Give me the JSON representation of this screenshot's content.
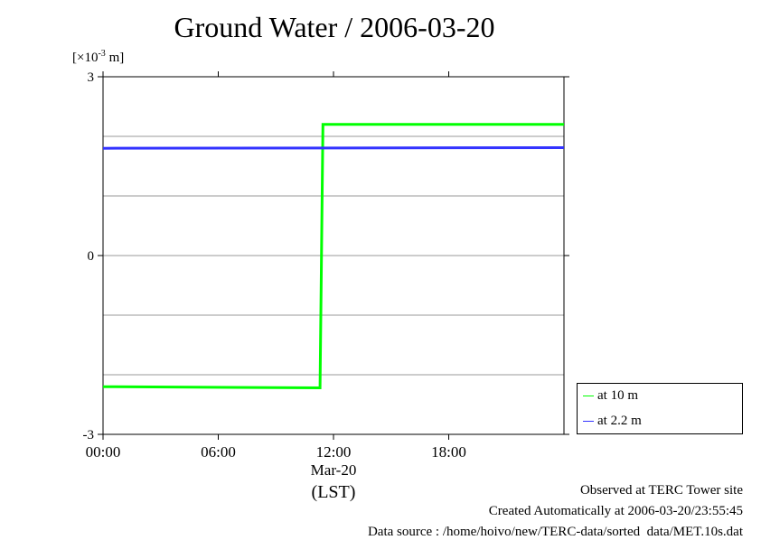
{
  "chart_data": {
    "type": "line",
    "title": "Ground Water / 2006-03-20",
    "unit_label_prefix": "[×10",
    "unit_label_exp": "-3",
    "unit_label_suffix": " m]",
    "ylim": [
      -3,
      3
    ],
    "xlim": [
      0,
      24
    ],
    "y_ticks": [
      {
        "value": 3,
        "label": "3"
      },
      {
        "value": 0,
        "label": "0"
      },
      {
        "value": -3,
        "label": "-3"
      }
    ],
    "y_grid": [
      2,
      1,
      -1,
      -2
    ],
    "x_ticks": [
      {
        "value": 0,
        "label": "00:00"
      },
      {
        "value": 6,
        "label": "06:00"
      },
      {
        "value": 12,
        "label": "12:00"
      },
      {
        "value": 18,
        "label": "18:00"
      }
    ],
    "x_date_label": "Mar-20",
    "x_axis_label": "(LST)",
    "series": [
      {
        "name": "at 10 m",
        "color": "#00ff00",
        "points": [
          [
            0,
            -2.2
          ],
          [
            11.3,
            -2.22
          ],
          [
            11.45,
            2.2
          ],
          [
            24,
            2.2
          ]
        ]
      },
      {
        "name": "at 2.2 m",
        "color": "#3333ff",
        "points": [
          [
            0,
            1.8
          ],
          [
            24,
            1.81
          ]
        ]
      }
    ]
  },
  "footer": {
    "line1": "Observed at TERC Tower site",
    "line2": "Created Automatically at 2006-03-20/23:55:45",
    "line3": "Data source : /home/hoivo/new/TERC-data/sorted  data/MET.10s.dat"
  }
}
